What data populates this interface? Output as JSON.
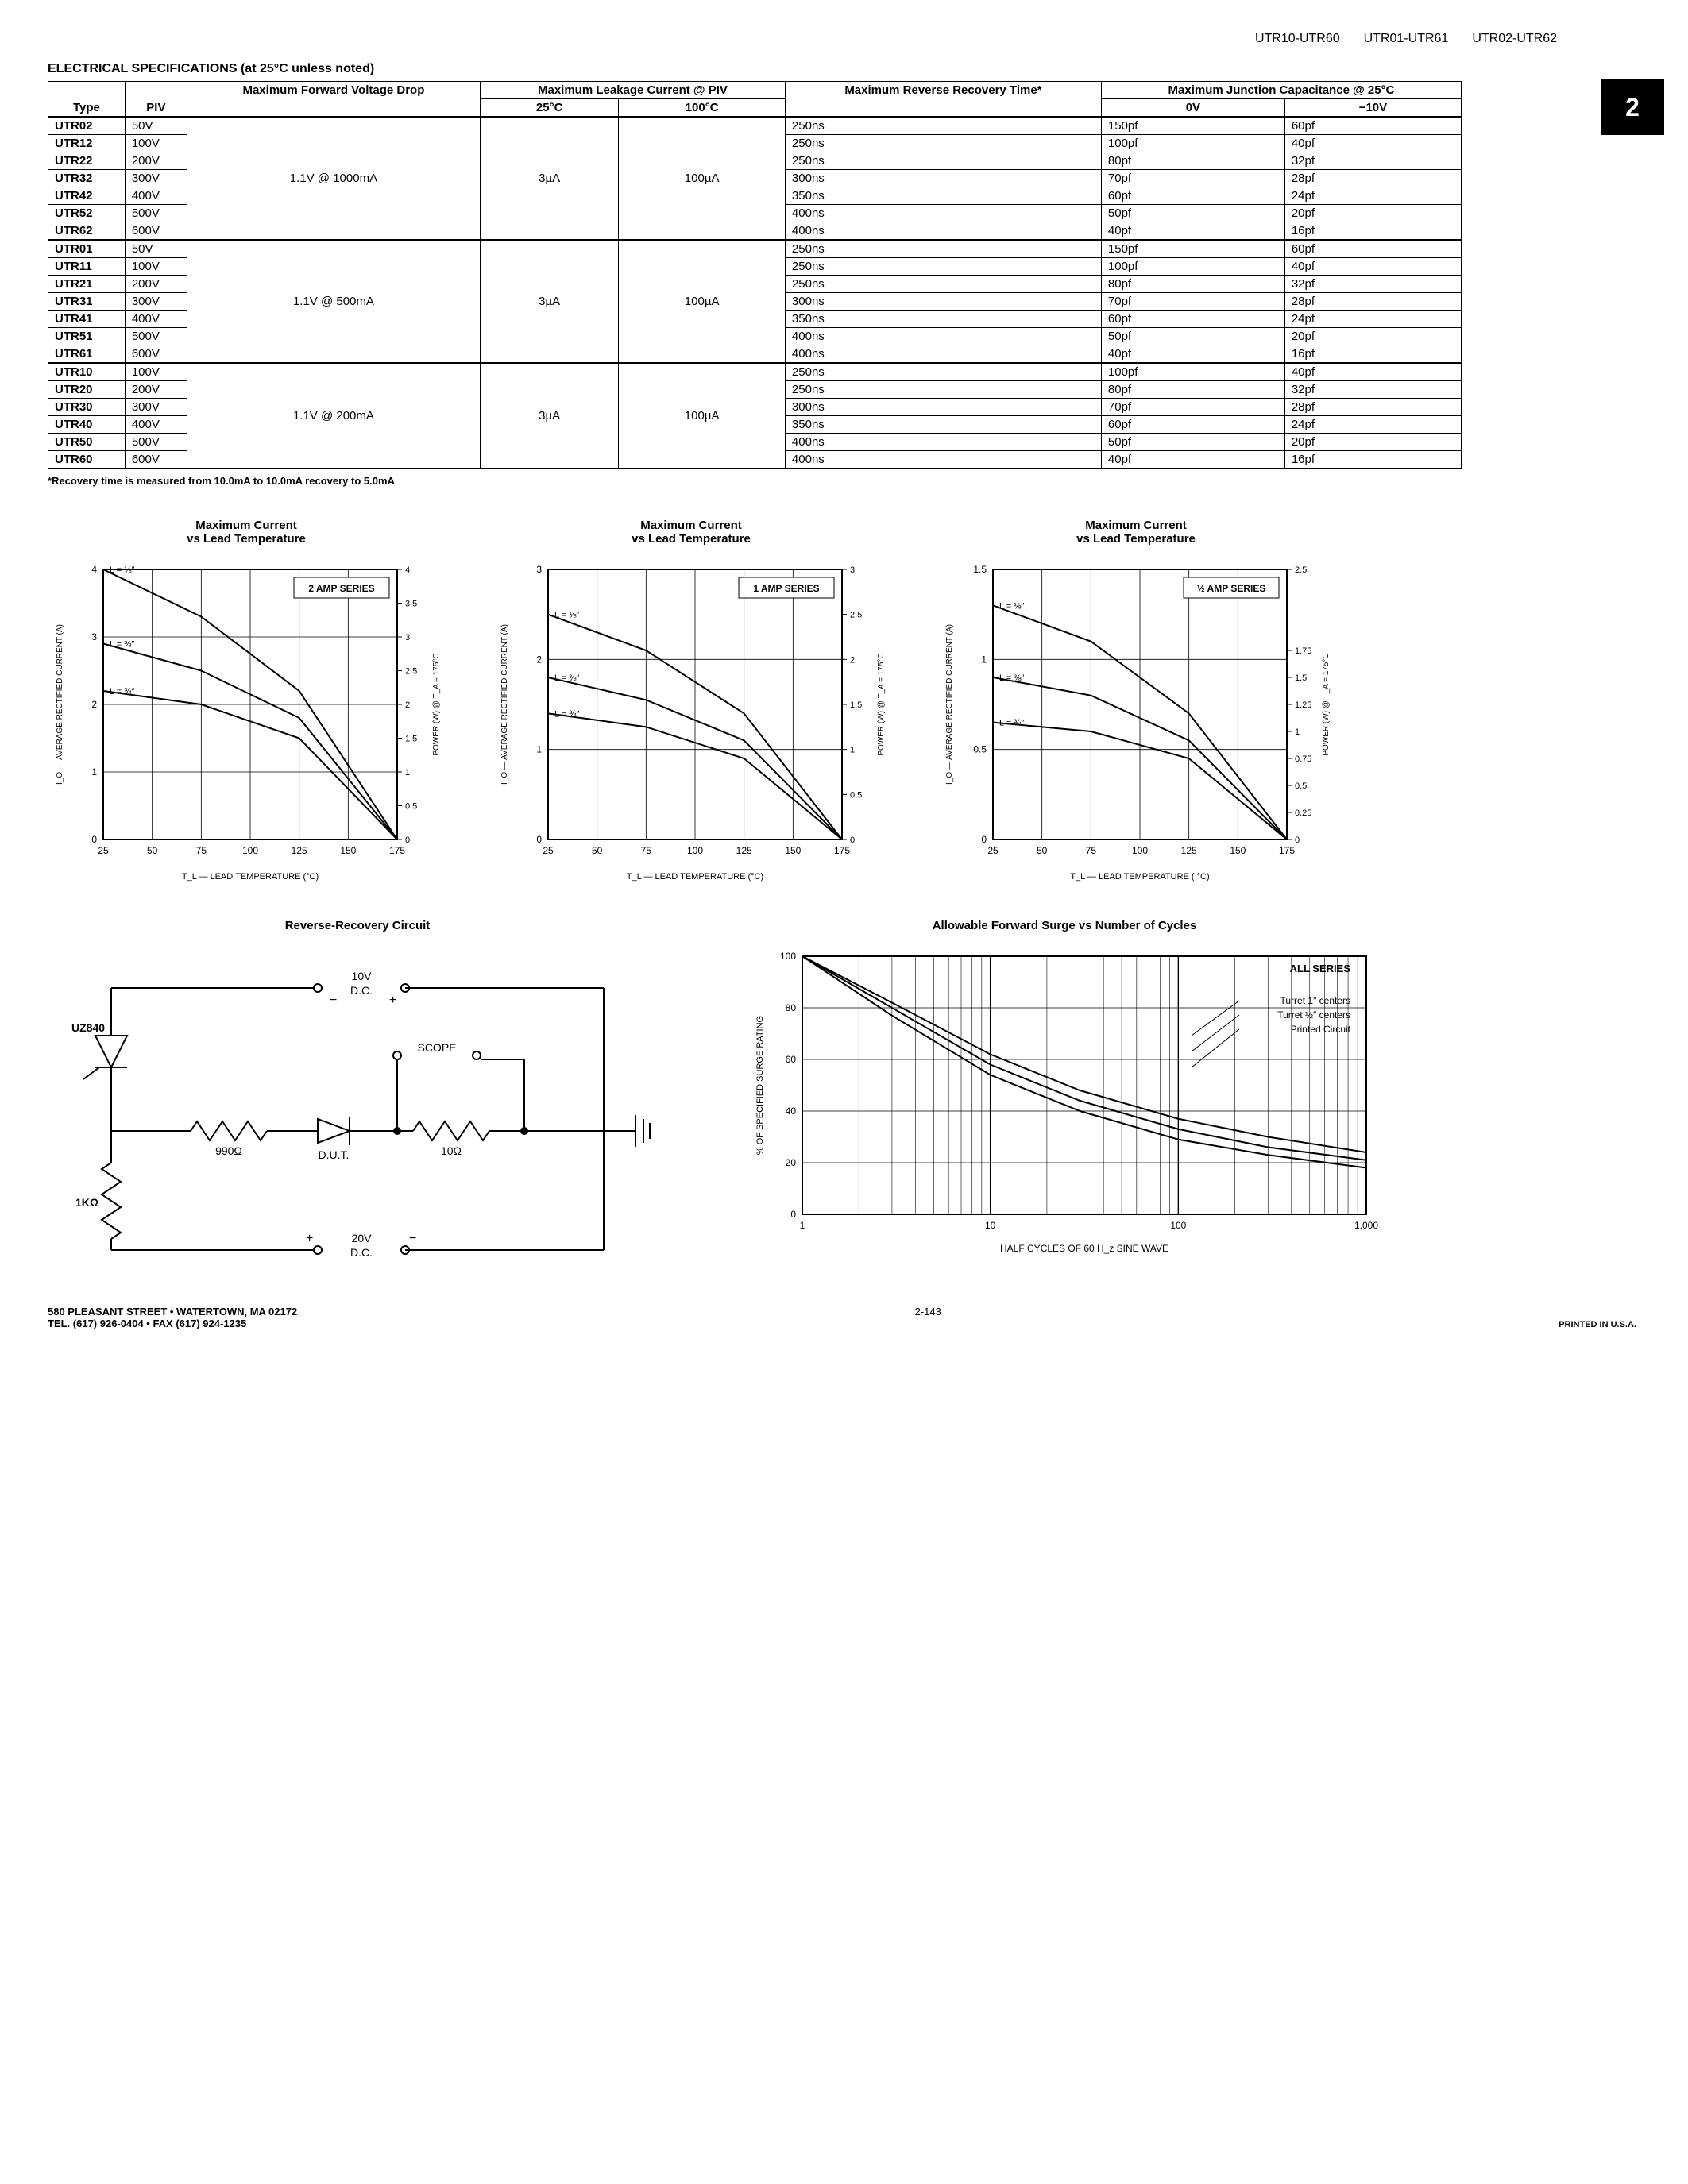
{
  "header": {
    "parts": [
      "UTR10-UTR60",
      "UTR01-UTR61",
      "UTR02-UTR62"
    ],
    "tab": "2"
  },
  "section_title": "ELECTRICAL SPECIFICATIONS (at 25°C unless noted)",
  "table": {
    "col_headers": {
      "type": "Type",
      "piv": "PIV",
      "vf": "Maximum Forward Voltage Drop",
      "leak": "Maximum Leakage Current @ PIV",
      "leak_25": "25°C",
      "leak_100": "100°C",
      "trr": "Maximum Reverse Recovery Time*",
      "cj": "Maximum Junction Capacitance @ 25°C",
      "cj_0v": "0V",
      "cj_10v": "−10V"
    },
    "groups": [
      {
        "vf": "1.1V @ 1000mA",
        "leak25": "3µA",
        "leak100": "100µA",
        "rows": [
          {
            "type": "UTR02",
            "piv": "50V",
            "trr": "250ns",
            "c0": "150pf",
            "c10": "60pf"
          },
          {
            "type": "UTR12",
            "piv": "100V",
            "trr": "250ns",
            "c0": "100pf",
            "c10": "40pf"
          },
          {
            "type": "UTR22",
            "piv": "200V",
            "trr": "250ns",
            "c0": "80pf",
            "c10": "32pf"
          },
          {
            "type": "UTR32",
            "piv": "300V",
            "trr": "300ns",
            "c0": "70pf",
            "c10": "28pf"
          },
          {
            "type": "UTR42",
            "piv": "400V",
            "trr": "350ns",
            "c0": "60pf",
            "c10": "24pf"
          },
          {
            "type": "UTR52",
            "piv": "500V",
            "trr": "400ns",
            "c0": "50pf",
            "c10": "20pf"
          },
          {
            "type": "UTR62",
            "piv": "600V",
            "trr": "400ns",
            "c0": "40pf",
            "c10": "16pf"
          }
        ]
      },
      {
        "vf": "1.1V @ 500mA",
        "leak25": "3µA",
        "leak100": "100µA",
        "rows": [
          {
            "type": "UTR01",
            "piv": "50V",
            "trr": "250ns",
            "c0": "150pf",
            "c10": "60pf"
          },
          {
            "type": "UTR11",
            "piv": "100V",
            "trr": "250ns",
            "c0": "100pf",
            "c10": "40pf"
          },
          {
            "type": "UTR21",
            "piv": "200V",
            "trr": "250ns",
            "c0": "80pf",
            "c10": "32pf"
          },
          {
            "type": "UTR31",
            "piv": "300V",
            "trr": "300ns",
            "c0": "70pf",
            "c10": "28pf"
          },
          {
            "type": "UTR41",
            "piv": "400V",
            "trr": "350ns",
            "c0": "60pf",
            "c10": "24pf"
          },
          {
            "type": "UTR51",
            "piv": "500V",
            "trr": "400ns",
            "c0": "50pf",
            "c10": "20pf"
          },
          {
            "type": "UTR61",
            "piv": "600V",
            "trr": "400ns",
            "c0": "40pf",
            "c10": "16pf"
          }
        ]
      },
      {
        "vf": "1.1V @ 200mA",
        "leak25": "3µA",
        "leak100": "100µA",
        "rows": [
          {
            "type": "UTR10",
            "piv": "100V",
            "trr": "250ns",
            "c0": "100pf",
            "c10": "40pf"
          },
          {
            "type": "UTR20",
            "piv": "200V",
            "trr": "250ns",
            "c0": "80pf",
            "c10": "32pf"
          },
          {
            "type": "UTR30",
            "piv": "300V",
            "trr": "300ns",
            "c0": "70pf",
            "c10": "28pf"
          },
          {
            "type": "UTR40",
            "piv": "400V",
            "trr": "350ns",
            "c0": "60pf",
            "c10": "24pf"
          },
          {
            "type": "UTR50",
            "piv": "500V",
            "trr": "400ns",
            "c0": "50pf",
            "c10": "20pf"
          },
          {
            "type": "UTR60",
            "piv": "600V",
            "trr": "400ns",
            "c0": "40pf",
            "c10": "16pf"
          }
        ]
      }
    ]
  },
  "footnote": "*Recovery time is measured from 10.0mA to 10.0mA recovery to 5.0mA",
  "charts": {
    "c1": {
      "title": "Maximum Current\nvs Lead Temperature",
      "series_label": "2 AMP SERIES",
      "xlabel": "T_L — LEAD TEMPERATURE (°C)",
      "ylabel_left": "I_O — AVERAGE RECTIFIED CURRENT (A)",
      "ylabel_right": "POWER (W) @ T_A = 175°C",
      "xticks": [
        25,
        50,
        75,
        100,
        125,
        150,
        175
      ],
      "yticks_left": [
        0,
        1,
        2,
        3,
        4
      ],
      "yticks_right": [
        0,
        0.5,
        1,
        1.5,
        2,
        2.5,
        3,
        3.5,
        4
      ],
      "line_labels": [
        "L = ⅛″",
        "L = ⅜″",
        "L = ¾″"
      ],
      "lines": [
        [
          [
            25,
            4.0
          ],
          [
            75,
            3.3
          ],
          [
            125,
            2.2
          ],
          [
            175,
            0
          ]
        ],
        [
          [
            25,
            2.9
          ],
          [
            75,
            2.5
          ],
          [
            125,
            1.8
          ],
          [
            175,
            0
          ]
        ],
        [
          [
            25,
            2.2
          ],
          [
            75,
            2.0
          ],
          [
            125,
            1.5
          ],
          [
            175,
            0
          ]
        ]
      ],
      "colors": {
        "grid": "#000",
        "bg": "#fff",
        "line": "#000"
      }
    },
    "c2": {
      "title": "Maximum Current\nvs Lead Temperature",
      "series_label": "1 AMP SERIES",
      "xlabel": "T_L — LEAD TEMPERATURE (°C)",
      "ylabel_left": "I_O — AVERAGE RECTIFIED CURRENT (A)",
      "ylabel_right": "POWER (W) @ T_A = 175°C",
      "xticks": [
        25,
        50,
        75,
        100,
        125,
        150,
        175
      ],
      "yticks_left": [
        0,
        1,
        2,
        3
      ],
      "yticks_right": [
        0,
        0.5,
        1,
        1.5,
        2,
        2.5,
        3
      ],
      "line_labels": [
        "L = ⅛″",
        "L = ⅜″",
        "L = ¾″"
      ],
      "lines": [
        [
          [
            25,
            2.5
          ],
          [
            75,
            2.1
          ],
          [
            125,
            1.4
          ],
          [
            175,
            0
          ]
        ],
        [
          [
            25,
            1.8
          ],
          [
            75,
            1.55
          ],
          [
            125,
            1.1
          ],
          [
            175,
            0
          ]
        ],
        [
          [
            25,
            1.4
          ],
          [
            75,
            1.25
          ],
          [
            125,
            0.9
          ],
          [
            175,
            0
          ]
        ]
      ],
      "colors": {
        "grid": "#000",
        "bg": "#fff",
        "line": "#000"
      }
    },
    "c3": {
      "title": "Maximum Current\nvs Lead Temperature",
      "series_label": "½ AMP SERIES",
      "xlabel": "T_L — LEAD TEMPERATURE ( °C)",
      "ylabel_left": "I_O — AVERAGE RECTIFIED CURRENT (A)",
      "ylabel_right": "POWER (W) @ T_A = 175°C",
      "xticks": [
        25,
        50,
        75,
        100,
        125,
        150,
        175
      ],
      "yticks_left": [
        0,
        0.5,
        1,
        1.5
      ],
      "yticks_right": [
        0,
        0.25,
        0.5,
        0.75,
        1,
        1.25,
        1.5,
        1.75,
        2.5
      ],
      "line_labels": [
        "L = ⅛″",
        "L = ⅜″",
        "L = ¾″"
      ],
      "lines": [
        [
          [
            25,
            1.3
          ],
          [
            75,
            1.1
          ],
          [
            125,
            0.7
          ],
          [
            175,
            0
          ]
        ],
        [
          [
            25,
            0.9
          ],
          [
            75,
            0.8
          ],
          [
            125,
            0.55
          ],
          [
            175,
            0
          ]
        ],
        [
          [
            25,
            0.65
          ],
          [
            75,
            0.6
          ],
          [
            125,
            0.45
          ],
          [
            175,
            0
          ]
        ]
      ],
      "colors": {
        "grid": "#000",
        "bg": "#fff",
        "line": "#000"
      }
    }
  },
  "circuit": {
    "title": "Reverse-Recovery Circuit",
    "labels": {
      "uz840": "UZ840",
      "r990": "990Ω",
      "dut": "D.U.T.",
      "r10": "10Ω",
      "scope": "SCOPE",
      "r1k": "1KΩ",
      "v10": "10V\nD.C.",
      "v20": "20V\nD.C."
    }
  },
  "surge_chart": {
    "title": "Allowable Forward Surge vs Number of Cycles",
    "xlabel": "HALF CYCLES OF 60 H_z SINE WAVE",
    "ylabel": "% OF SPECIFIED SURGE RATING",
    "series_label": "ALL SERIES",
    "xticks": [
      1,
      10,
      100,
      1000
    ],
    "yticks": [
      0,
      20,
      40,
      60,
      80,
      100
    ],
    "line_labels": [
      "Turret 1″ centers",
      "Turret ½″ centers",
      "Printed Circuit"
    ],
    "lines": [
      [
        [
          1,
          100
        ],
        [
          3,
          82
        ],
        [
          10,
          62
        ],
        [
          30,
          48
        ],
        [
          100,
          37
        ],
        [
          300,
          30
        ],
        [
          1000,
          24
        ]
      ],
      [
        [
          1,
          100
        ],
        [
          3,
          80
        ],
        [
          10,
          58
        ],
        [
          30,
          44
        ],
        [
          100,
          33
        ],
        [
          300,
          26
        ],
        [
          1000,
          21
        ]
      ],
      [
        [
          1,
          100
        ],
        [
          3,
          77
        ],
        [
          10,
          54
        ],
        [
          30,
          40
        ],
        [
          100,
          29
        ],
        [
          300,
          23
        ],
        [
          1000,
          18
        ]
      ]
    ],
    "colors": {
      "grid": "#000",
      "bg": "#fff",
      "line": "#000"
    }
  },
  "footer": {
    "addr1": "580 PLEASANT STREET • WATERTOWN, MA 02172",
    "addr2": "TEL. (617) 926-0404 • FAX (617) 924-1235",
    "page": "2-143",
    "printed": "PRINTED IN U.S.A."
  }
}
